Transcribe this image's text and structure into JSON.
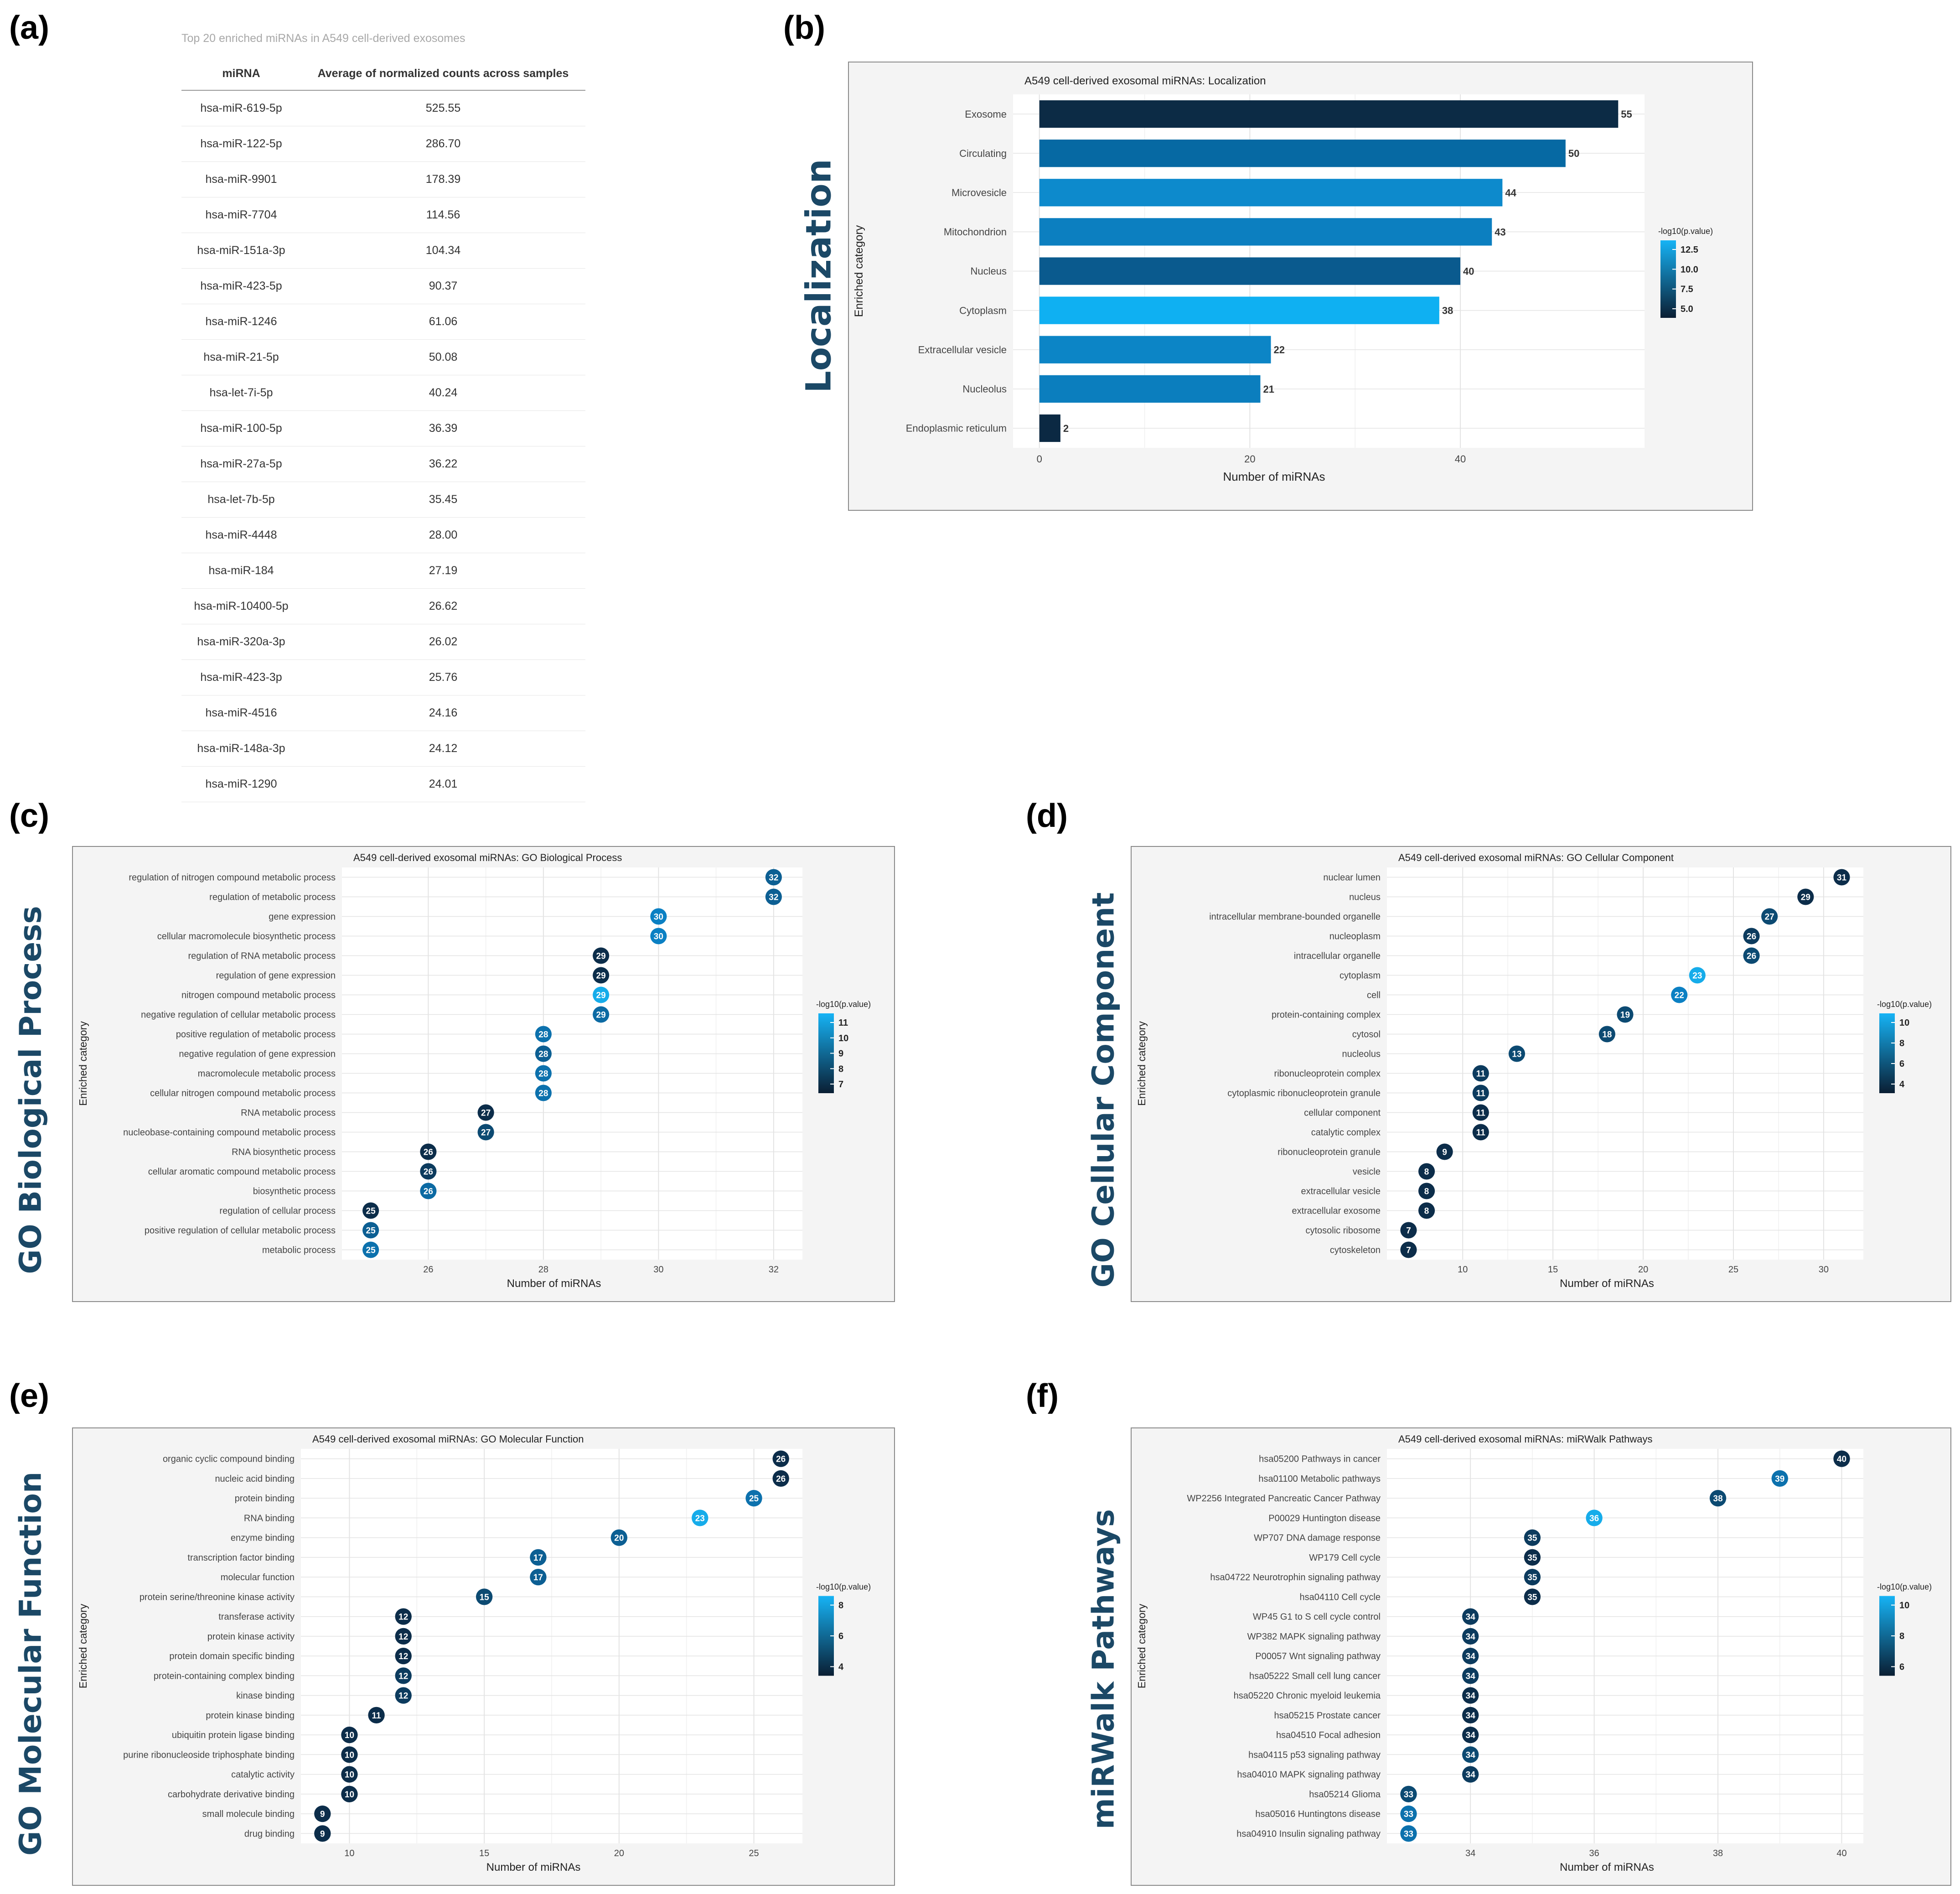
{
  "panel_labels": {
    "a": "(a)",
    "b": "(b)",
    "c": "(c)",
    "d": "(d)",
    "e": "(e)",
    "f": "(f)"
  },
  "side_labels": {
    "b": "Localization",
    "c": "GO Biological Process",
    "d": "GO Cellular Component",
    "e": "GO Molecular Function",
    "f": "miRWalk Pathways"
  },
  "table": {
    "title": "Top 20 enriched miRNAs in A549 cell-derived exosomes",
    "headers": [
      "miRNA",
      "Average of normalized counts across samples"
    ],
    "rows": [
      [
        "hsa-miR-619-5p",
        "525.55"
      ],
      [
        "hsa-miR-122-5p",
        "286.70"
      ],
      [
        "hsa-miR-9901",
        "178.39"
      ],
      [
        "hsa-miR-7704",
        "114.56"
      ],
      [
        "hsa-miR-151a-3p",
        "104.34"
      ],
      [
        "hsa-miR-423-5p",
        "90.37"
      ],
      [
        "hsa-miR-1246",
        "61.06"
      ],
      [
        "hsa-miR-21-5p",
        "50.08"
      ],
      [
        "hsa-let-7i-5p",
        "40.24"
      ],
      [
        "hsa-miR-100-5p",
        "36.39"
      ],
      [
        "hsa-miR-27a-5p",
        "36.22"
      ],
      [
        "hsa-let-7b-5p",
        "35.45"
      ],
      [
        "hsa-miR-4448",
        "28.00"
      ],
      [
        "hsa-miR-184",
        "27.19"
      ],
      [
        "hsa-miR-10400-5p",
        "26.62"
      ],
      [
        "hsa-miR-320a-3p",
        "26.02"
      ],
      [
        "hsa-miR-423-3p",
        "25.76"
      ],
      [
        "hsa-miR-4516",
        "24.16"
      ],
      [
        "hsa-miR-148a-3p",
        "24.12"
      ],
      [
        "hsa-miR-1290",
        "24.01"
      ]
    ]
  },
  "chart_data": [
    {
      "id": "b",
      "type": "bar",
      "title": "A549 cell-derived exosomal miRNAs: Localization",
      "xlabel": "Number of miRNAs",
      "ylabel": "Enriched category",
      "xlim": [
        -2.5,
        57.5
      ],
      "xticks": [
        0,
        20,
        40
      ],
      "categories": [
        "Exosome",
        "Circulating",
        "Microvesicle",
        "Mitochondrion",
        "Nucleus",
        "Cytoplasm",
        "Extracellular vesicle",
        "Nucleolus",
        "Endoplasmic reticulum"
      ],
      "values": [
        55,
        50,
        44,
        43,
        40,
        38,
        22,
        21,
        2
      ],
      "colors": [
        "#0c2b45",
        "#0669a3",
        "#0d8acc",
        "#0c7fc0",
        "#0a5a8e",
        "#0fb0f2",
        "#0c85c6",
        "#0b7ebe",
        "#0b2943"
      ],
      "legend": {
        "title": "-log10(p.value)",
        "labels": [
          "12.5",
          "10.0",
          "7.5",
          "5.0"
        ]
      }
    },
    {
      "id": "c",
      "type": "scatter",
      "title": "A549 cell-derived exosomal miRNAs: GO Biological Process",
      "xlabel": "Number of miRNAs",
      "ylabel": "Enriched category",
      "xlim": [
        24.5,
        32.5
      ],
      "xticks": [
        26,
        28,
        30,
        32
      ],
      "categories": [
        "regulation of nitrogen compound metabolic process",
        "regulation of metabolic process",
        "gene expression",
        "cellular macromolecule biosynthetic process",
        "regulation of RNA metabolic process",
        "regulation of gene expression",
        "nitrogen compound metabolic process",
        "negative regulation of cellular metabolic process",
        "positive regulation of metabolic process",
        "negative regulation of gene expression",
        "macromolecule metabolic process",
        "cellular nitrogen compound metabolic process",
        "RNA metabolic process",
        "nucleobase-containing compound metabolic process",
        "RNA biosynthetic process",
        "cellular aromatic compound metabolic process",
        "biosynthetic process",
        "regulation of cellular process",
        "positive regulation of cellular metabolic process",
        "metabolic process"
      ],
      "values": [
        32,
        32,
        30,
        30,
        29,
        29,
        29,
        29,
        28,
        28,
        28,
        28,
        27,
        27,
        26,
        26,
        26,
        25,
        25,
        25
      ],
      "colors": [
        "#0c5f93",
        "#0c5f93",
        "#0b80c3",
        "#0b80c3",
        "#0c2d4a",
        "#0c2d4a",
        "#16acea",
        "#0c6aa3",
        "#0c71ad",
        "#0c5f93",
        "#0c71ad",
        "#0c71ad",
        "#0c2d4a",
        "#0c4a72",
        "#0c2d4a",
        "#0c3b5e",
        "#0c6aa3",
        "#0c2d4a",
        "#0c5f93",
        "#0c71ad"
      ],
      "legend": {
        "title": "-log10(p.value)",
        "labels": [
          "11",
          "10",
          "9",
          "8",
          "7"
        ]
      }
    },
    {
      "id": "d",
      "type": "scatter",
      "title": "A549 cell-derived exosomal miRNAs: GO Cellular Component",
      "xlabel": "Number of miRNAs",
      "ylabel": "Enriched category",
      "xlim": [
        5.8,
        32.2
      ],
      "xticks": [
        10,
        15,
        20,
        25,
        30
      ],
      "categories": [
        "nuclear lumen",
        "nucleus",
        "intracellular membrane-bounded organelle",
        "nucleoplasm",
        "intracellular organelle",
        "cytoplasm",
        "cell",
        "protein-containing complex",
        "cytosol",
        "nucleolus",
        "ribonucleoprotein complex",
        "cytoplasmic ribonucleoprotein granule",
        "cellular component",
        "catalytic complex",
        "ribonucleoprotein granule",
        "vesicle",
        "extracellular vesicle",
        "extracellular exosome",
        "cytosolic ribosome",
        "cytoskeleton"
      ],
      "values": [
        31,
        29,
        27,
        26,
        26,
        23,
        22,
        19,
        18,
        13,
        11,
        11,
        11,
        11,
        9,
        8,
        8,
        8,
        7,
        7
      ],
      "colors": [
        "#0c2d4a",
        "#0c2d4a",
        "#0c4a72",
        "#0c3b5e",
        "#0c4a72",
        "#16acea",
        "#0b80c3",
        "#0c4a72",
        "#0c4a72",
        "#0c4a72",
        "#0c3b5e",
        "#0c3b5e",
        "#0c2d4a",
        "#0c2d4a",
        "#0c2d4a",
        "#0c2d4a",
        "#0c2d4a",
        "#0c2d4a",
        "#0c2d4a",
        "#0c2d4a"
      ],
      "legend": {
        "title": "-log10(p.value)",
        "labels": [
          "10",
          "8",
          "6",
          "4"
        ]
      }
    },
    {
      "id": "e",
      "type": "scatter",
      "title": "A549 cell-derived exosomal miRNAs: GO Molecular Function",
      "xlabel": "Number of miRNAs",
      "ylabel": "Enriched category",
      "xlim": [
        8.2,
        26.8
      ],
      "xticks": [
        10,
        15,
        20,
        25
      ],
      "categories": [
        "organic cyclic compound binding",
        "nucleic acid binding",
        "protein binding",
        "RNA binding",
        "enzyme binding",
        "transcription factor binding",
        "molecular function",
        "protein serine/threonine kinase activity",
        "transferase activity",
        "protein kinase activity",
        "protein domain specific binding",
        "protein-containing complex binding",
        "kinase binding",
        "protein kinase binding",
        "ubiquitin protein ligase binding",
        "purine ribonucleoside triphosphate binding",
        "catalytic activity",
        "carbohydrate derivative binding",
        "small molecule binding",
        "drug binding"
      ],
      "values": [
        26,
        26,
        25,
        23,
        20,
        17,
        17,
        15,
        12,
        12,
        12,
        12,
        12,
        11,
        10,
        10,
        10,
        10,
        9,
        9
      ],
      "colors": [
        "#0c2d4a",
        "#0c2d4a",
        "#0c71ad",
        "#16acea",
        "#0c5f93",
        "#0c5f93",
        "#0c5f93",
        "#0c4a72",
        "#0c2d4a",
        "#0c2d4a",
        "#0c2d4a",
        "#0c3b5e",
        "#0c3b5e",
        "#0c2d4a",
        "#0c2d4a",
        "#0c2d4a",
        "#0c2d4a",
        "#0c2d4a",
        "#0c2d4a",
        "#0c2d4a"
      ],
      "legend": {
        "title": "-log10(p.value)",
        "labels": [
          "8",
          "6",
          "4"
        ]
      }
    },
    {
      "id": "f",
      "type": "scatter",
      "title": "A549 cell-derived exosomal miRNAs: miRWalk Pathways",
      "xlabel": "Number of miRNAs",
      "ylabel": "Enriched category",
      "xlim": [
        32.65,
        40.35
      ],
      "xticks": [
        34,
        36,
        38,
        40
      ],
      "categories": [
        "hsa05200 Pathways in cancer",
        "hsa01100 Metabolic pathways",
        "WP2256 Integrated Pancreatic Cancer Pathway",
        "P00029 Huntington disease",
        "WP707 DNA damage response",
        "WP179 Cell cycle",
        "hsa04722 Neurotrophin signaling pathway",
        "hsa04110 Cell cycle",
        "WP45 G1 to S cell cycle control",
        "WP382 MAPK signaling pathway",
        "P00057 Wnt signaling pathway",
        "hsa05222 Small cell lung cancer",
        "hsa05220 Chronic myeloid leukemia",
        "hsa05215 Prostate cancer",
        "hsa04510 Focal adhesion",
        "hsa04115 p53 signaling pathway",
        "hsa04010 MAPK signaling pathway",
        "hsa05214 Glioma",
        "hsa05016 Huntingtons disease",
        "hsa04910 Insulin signaling pathway"
      ],
      "values": [
        40,
        39,
        38,
        36,
        35,
        35,
        35,
        35,
        34,
        34,
        34,
        34,
        34,
        34,
        34,
        34,
        34,
        33,
        33,
        33
      ],
      "colors": [
        "#0c2d4a",
        "#0c71ad",
        "#0c4a72",
        "#16acea",
        "#0c3b5e",
        "#0c2d4a",
        "#0c3b5e",
        "#0c2d4a",
        "#0c3b5e",
        "#0c3b5e",
        "#0c3b5e",
        "#0c3b5e",
        "#0c2d4a",
        "#0c2d4a",
        "#0c2d4a",
        "#0c4a72",
        "#0c3b5e",
        "#0c4a72",
        "#0c71ad",
        "#0c71ad"
      ],
      "legend": {
        "title": "-log10(p.value)",
        "labels": [
          "10",
          "8",
          "6"
        ]
      }
    }
  ]
}
